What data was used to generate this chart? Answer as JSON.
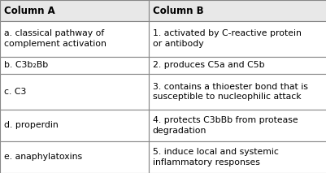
{
  "title_a": "Column A",
  "title_b": "Column B",
  "col_a": [
    "a. classical pathway of\ncomplement activation",
    "b. C3b₂Bb",
    "c. C3",
    "d. properdin",
    "e. anaphylatoxins"
  ],
  "col_b": [
    "1. activated by C-reactive protein\nor antibody",
    "2. produces C5a and C5b",
    "3. contains a thioester bond that is\nsusceptible to nucleophilic attack",
    "4. protects C3bBb from protease\ndegradation",
    "5. induce local and systemic\ninflammatory responses"
  ],
  "header_bg": "#e8e8e8",
  "row_bg": "#ffffff",
  "border_color": "#888888",
  "text_color": "#000000",
  "header_fontsize": 8.5,
  "cell_fontsize": 7.8,
  "col_split": 0.455,
  "fig_w": 4.02,
  "fig_h": 2.13,
  "dpi": 100
}
